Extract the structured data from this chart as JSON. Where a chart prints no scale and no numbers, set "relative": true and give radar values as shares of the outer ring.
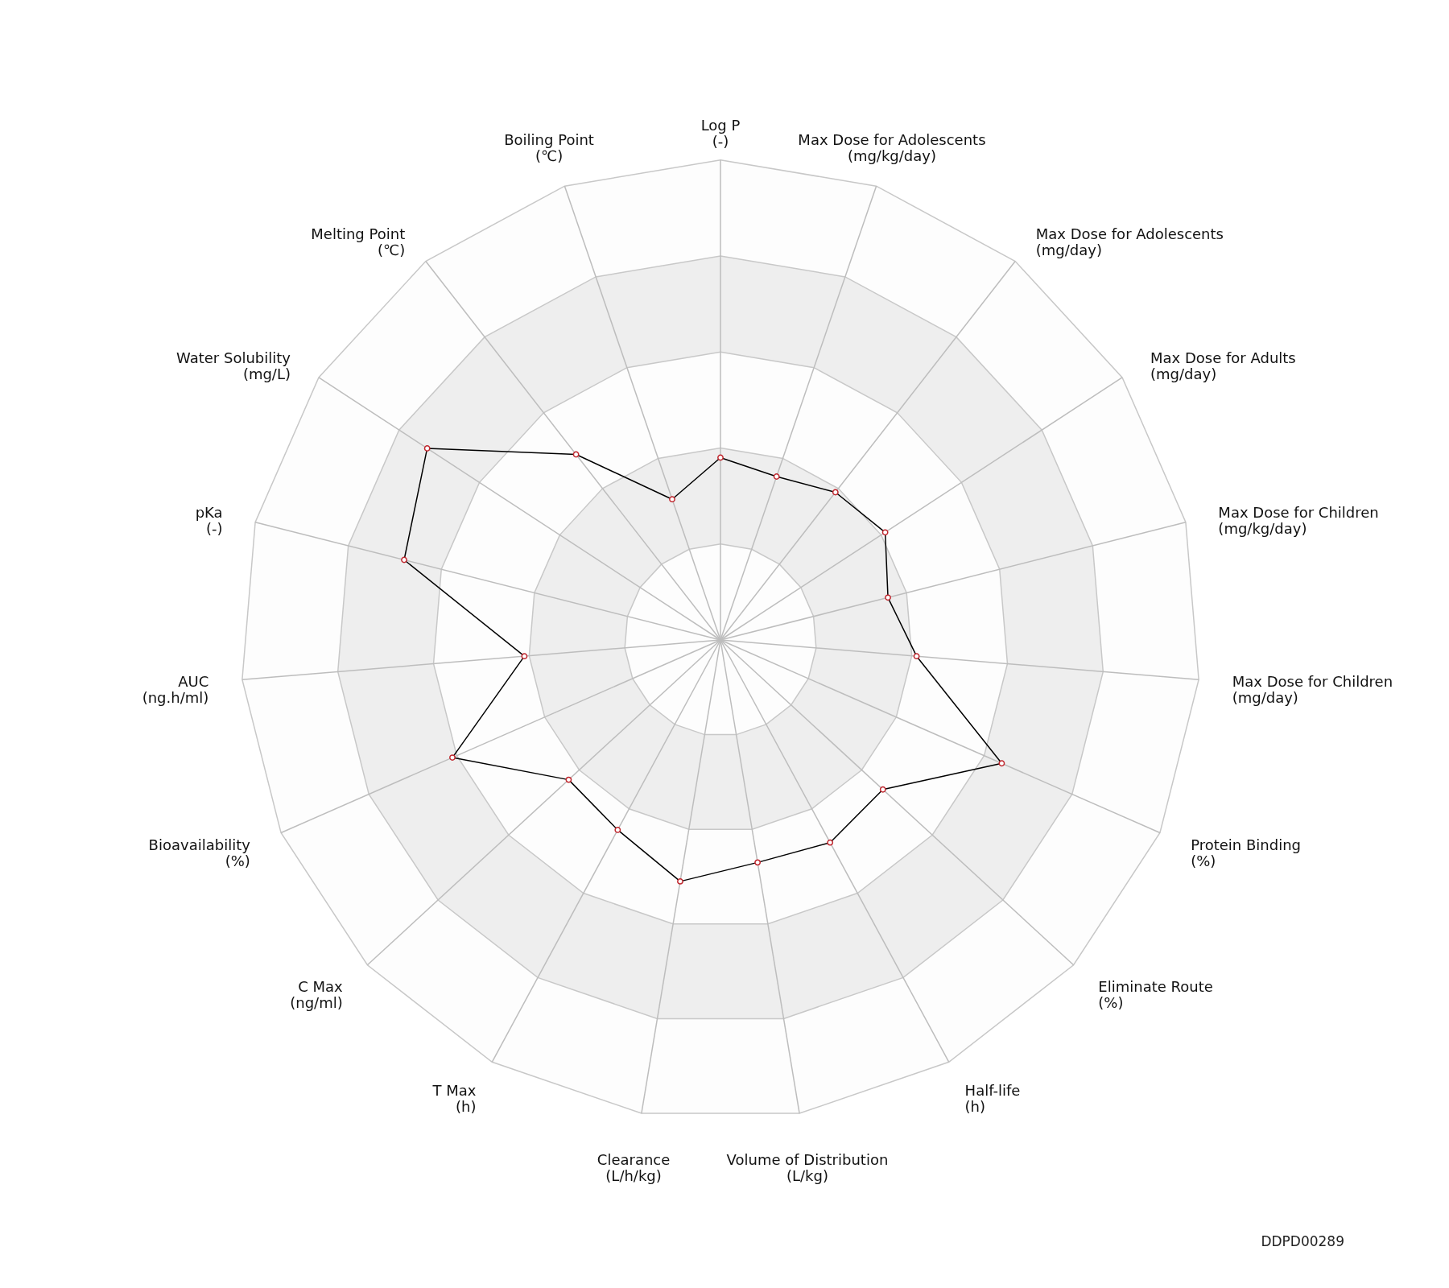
{
  "chart_data": {
    "type": "radar",
    "relative": true,
    "grid": true,
    "marker": "circle",
    "line_style": "solid",
    "categories": [
      "Log P\n(-)",
      "Max Dose for Adolescents\n(mg/kg/day)",
      "Max Dose for Adolescents\n(mg/day)",
      "Max Dose for Adults\n(mg/day)",
      "Max Dose for Children\n(mg/kg/day)",
      "Max Dose for Children\n(mg/day)",
      "Protein Binding\n(%)",
      "Eliminate Route\n(%)",
      "Half-life\n(h)",
      "Volume of Distribution\n(L/kg)",
      "Clearance\n(L/h/kg)",
      "T Max\n(h)",
      "C Max\n(ng/ml)",
      "Bioavailability\n(%)",
      "AUC\n(ng.h/ml)",
      "pKa\n(-)",
      "Water Solubility\n(mg/L)",
      "Melting Point\n(℃)",
      "Boiling Point\n(℃)"
    ],
    "series": [
      {
        "color": "#000000",
        "values": [
          0.38,
          0.36,
          0.39,
          0.41,
          0.36,
          0.41,
          0.64,
          0.46,
          0.48,
          0.47,
          0.51,
          0.45,
          0.43,
          0.61,
          0.41,
          0.68,
          0.73,
          0.49,
          0.31
        ]
      }
    ],
    "annotations": [
      "DDPD00289"
    ]
  }
}
